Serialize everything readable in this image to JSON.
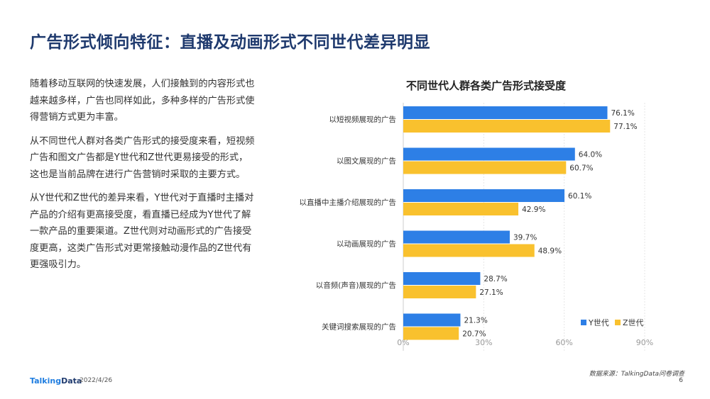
{
  "page": {
    "title": "广告形式倾向特征：直播及动画形式不同世代差异明显",
    "paragraphs": [
      "随着移动互联网的快速发展，人们接触到的内容形式也越来越多样，广告也同样如此，多种多样的广告形式使得营销方式更为丰富。",
      "从不同世代人群对各类广告形式的接受度来看，短视频广告和图文广告都是Y世代和Z世代更易接受的形式，这也是当前品牌在进行广告营销时采取的主要方式。",
      "从Y世代和Z世代的差异来看，Y世代对于直播时主播对产品的介绍有更高接受度，看直播已经成为Y世代了解一款产品的重要渠道。Z世代则对动画形式的广告接受度更高，这类广告形式对更常接触动漫作品的Z世代有更强吸引力。"
    ],
    "footer": {
      "logo_a": "Talking",
      "logo_b": "Data",
      "date": "2022/4/26",
      "source": "数据来源：TalkingData问卷调查",
      "page_number": "6"
    }
  },
  "chart_data": {
    "type": "bar",
    "orientation": "horizontal",
    "title": "不同世代人群各类广告形式接受度",
    "categories": [
      "以短视频展现的广告",
      "以图文展现的广告",
      "以直播中主播介绍展现的广告",
      "以动画展现的广告",
      "以音频(声音)展现的广告",
      "关键词搜索展现的广告"
    ],
    "series": [
      {
        "name": "Y世代",
        "color": "#2d7fe6",
        "values": [
          76.1,
          64.0,
          60.1,
          39.7,
          28.7,
          21.3
        ]
      },
      {
        "name": "Z世代",
        "color": "#f9c12e",
        "values": [
          77.1,
          60.7,
          42.9,
          48.9,
          27.1,
          20.7
        ]
      }
    ],
    "xlim": [
      0,
      90
    ],
    "xticks": [
      "0%",
      "30%",
      "60%",
      "90%"
    ],
    "xtick_values": [
      0,
      30,
      60,
      90
    ],
    "value_suffix": "%",
    "grid": true,
    "legend_position": "bottom-right"
  }
}
